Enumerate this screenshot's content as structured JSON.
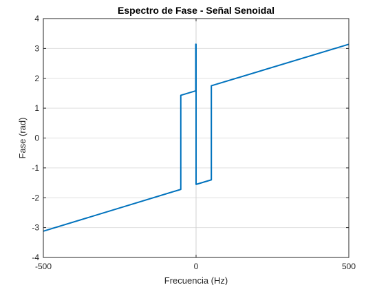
{
  "chart_data": {
    "type": "line",
    "title": "Espectro de Fase - Señal Senoidal",
    "xlabel": "Frecuencia (Hz)",
    "ylabel": "Fase (rad)",
    "xlim": [
      -500,
      500
    ],
    "ylim": [
      -4,
      4
    ],
    "x_ticks": [
      -500,
      0,
      500
    ],
    "y_ticks": [
      -4,
      -3,
      -2,
      -1,
      0,
      1,
      2,
      3,
      4
    ],
    "grid": true,
    "legend": "none",
    "series": [
      {
        "color": "#0072BD",
        "x": [
          -500,
          -50,
          -50,
          -1,
          -1,
          0,
          0,
          1,
          1,
          50,
          50,
          500
        ],
        "y": [
          -3.12,
          -1.72,
          1.43,
          1.58,
          3.14,
          3.14,
          -1.55,
          -1.55,
          -1.55,
          -1.4,
          1.75,
          3.14
        ]
      }
    ],
    "zero_line_color": "#d0d0d0"
  }
}
